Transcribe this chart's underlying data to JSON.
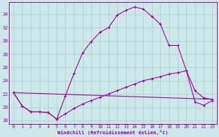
{
  "xlabel": "Windchill (Refroidissement éolien,°C)",
  "background_color": "#cce8e8",
  "grid_color": "#aacccc",
  "line_color": "#990099",
  "xlim": [
    -0.5,
    23.5
  ],
  "ylim": [
    17.5,
    35.8
  ],
  "yticks": [
    18,
    20,
    22,
    24,
    26,
    28,
    30,
    32,
    34
  ],
  "xticks": [
    0,
    1,
    2,
    3,
    4,
    5,
    6,
    7,
    8,
    9,
    10,
    11,
    12,
    13,
    14,
    15,
    16,
    17,
    18,
    19,
    20,
    21,
    22,
    23
  ],
  "line1_x": [
    0,
    1,
    2,
    3,
    4,
    5,
    6,
    7,
    8,
    9,
    10,
    11,
    12,
    13,
    14,
    15,
    16,
    17,
    18,
    19,
    20,
    21,
    22,
    23
  ],
  "line1_y": [
    22.2,
    20.2,
    19.3,
    19.3,
    19.2,
    18.2,
    21.7,
    25.1,
    28.2,
    29.9,
    31.3,
    32.0,
    33.9,
    34.6,
    35.1,
    34.8,
    33.7,
    32.5,
    29.3,
    29.3,
    25.5,
    22.5,
    21.4,
    21.2
  ],
  "line2_x": [
    0,
    1,
    2,
    3,
    4,
    5,
    6,
    7,
    8,
    9,
    10,
    11,
    12,
    13,
    14,
    15,
    16,
    17,
    18,
    19,
    20,
    21,
    22,
    23
  ],
  "line2_y": [
    22.2,
    20.2,
    19.3,
    19.3,
    19.2,
    18.2,
    19.0,
    19.8,
    20.5,
    21.0,
    21.5,
    22.0,
    22.5,
    23.0,
    23.5,
    24.0,
    24.3,
    24.6,
    25.0,
    25.2,
    25.5,
    20.8,
    20.3,
    21.0
  ],
  "line3_x": [
    0,
    23
  ],
  "line3_y": [
    22.2,
    21.2
  ]
}
